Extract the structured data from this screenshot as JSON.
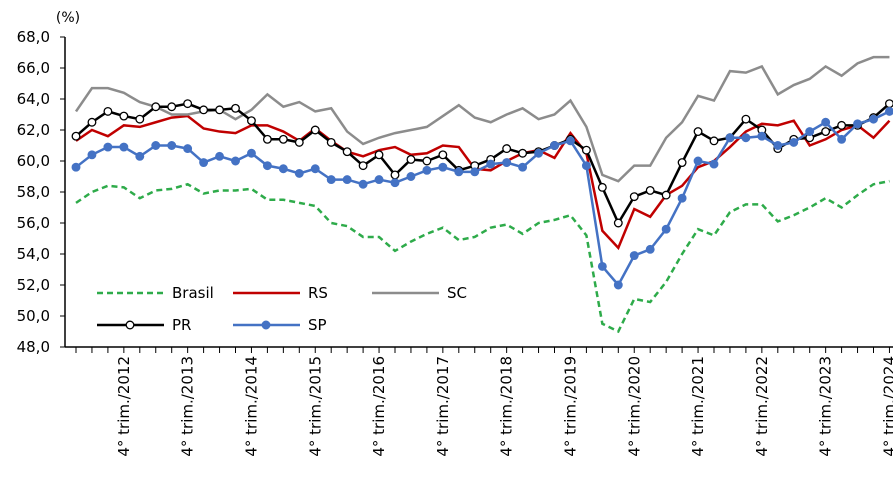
{
  "chart_data": {
    "type": "line",
    "y_unit_label": "(%)",
    "categories": [
      null,
      null,
      null,
      "4° trim./2012",
      null,
      null,
      null,
      "4° trim./2013",
      null,
      null,
      null,
      "4° trim./2014",
      null,
      null,
      null,
      "4° trim./2015",
      null,
      null,
      null,
      "4° trim./2016",
      null,
      null,
      null,
      "4° trim./2017",
      null,
      null,
      null,
      "4° trim./2018",
      null,
      null,
      null,
      "4° trim./2019",
      null,
      null,
      null,
      "4° trim./2020",
      null,
      null,
      null,
      "4° trim./2021",
      null,
      null,
      null,
      "4° trim./2022",
      null,
      null,
      null,
      "4° trim./2023",
      null,
      null,
      null,
      "4° trim./2024"
    ],
    "ylim": [
      48,
      68
    ],
    "yticks": [
      {
        "value": 48,
        "label": "48,0"
      },
      {
        "value": 50,
        "label": "50,0"
      },
      {
        "value": 52,
        "label": "52,0"
      },
      {
        "value": 54,
        "label": "54,0"
      },
      {
        "value": 56,
        "label": "56,0"
      },
      {
        "value": 58,
        "label": "58,0"
      },
      {
        "value": 60,
        "label": "60,0"
      },
      {
        "value": 62,
        "label": "62,0"
      },
      {
        "value": 64,
        "label": "64,0"
      },
      {
        "value": 66,
        "label": "66,0"
      },
      {
        "value": 68,
        "label": "68,0"
      }
    ],
    "grid": false,
    "series": [
      {
        "name": "Brasil",
        "color": "#2eab4a",
        "line_style": "dashed",
        "markers": false,
        "values": [
          57.3,
          58.0,
          58.4,
          58.3,
          57.6,
          58.1,
          58.2,
          58.5,
          57.9,
          58.1,
          58.1,
          58.2,
          57.5,
          57.5,
          57.3,
          57.1,
          56.0,
          55.8,
          55.1,
          55.1,
          54.2,
          54.8,
          55.3,
          55.7,
          54.9,
          55.1,
          55.7,
          55.9,
          55.3,
          56.0,
          56.2,
          56.5,
          55.2,
          49.5,
          49.0,
          51.1,
          50.9,
          52.2,
          54.0,
          55.6,
          55.2,
          56.7,
          57.2,
          57.2,
          56.1,
          56.5,
          57.0,
          57.6,
          57.0,
          57.8,
          58.5,
          58.7
        ]
      },
      {
        "name": "RS",
        "color": "#c00000",
        "line_style": "solid",
        "markers": false,
        "values": [
          61.3,
          62.0,
          61.6,
          62.3,
          62.2,
          62.5,
          62.8,
          62.9,
          62.1,
          61.9,
          61.8,
          62.3,
          62.3,
          61.9,
          61.3,
          62.1,
          61.3,
          60.6,
          60.3,
          60.7,
          60.9,
          60.4,
          60.5,
          61.0,
          60.9,
          59.5,
          59.4,
          60.0,
          60.5,
          60.7,
          60.2,
          61.8,
          60.5,
          55.5,
          54.4,
          56.9,
          56.4,
          57.8,
          58.4,
          59.6,
          60.0,
          60.9,
          61.9,
          62.4,
          62.3,
          62.6,
          61.0,
          61.4,
          62.0,
          62.3,
          61.5,
          62.6
        ]
      },
      {
        "name": "SC",
        "color": "#8c8c8c",
        "line_style": "solid",
        "markers": false,
        "values": [
          63.2,
          64.7,
          64.7,
          64.4,
          63.8,
          63.5,
          63.0,
          63.0,
          63.2,
          63.3,
          62.7,
          63.3,
          64.3,
          63.5,
          63.8,
          63.2,
          63.4,
          61.9,
          61.1,
          61.5,
          61.8,
          62.0,
          62.2,
          62.9,
          63.6,
          62.8,
          62.5,
          63.0,
          63.4,
          62.7,
          63.0,
          63.9,
          62.2,
          59.1,
          58.7,
          59.7,
          59.7,
          61.5,
          62.5,
          64.2,
          63.9,
          65.8,
          65.7,
          66.1,
          64.3,
          64.9,
          65.3,
          66.1,
          65.5,
          66.3,
          66.7,
          66.7
        ]
      },
      {
        "name": "PR",
        "color": "#000000",
        "line_style": "solid",
        "markers": true,
        "marker_fill": "#ffffff",
        "values": [
          61.6,
          62.5,
          63.2,
          62.9,
          62.7,
          63.5,
          63.5,
          63.7,
          63.3,
          63.3,
          63.4,
          62.6,
          61.4,
          61.4,
          61.2,
          62.0,
          61.2,
          60.6,
          59.7,
          60.4,
          59.1,
          60.1,
          60.0,
          60.4,
          59.4,
          59.7,
          60.1,
          60.8,
          60.5,
          60.6,
          61.0,
          61.4,
          60.7,
          58.3,
          56.0,
          57.7,
          58.1,
          57.8,
          59.9,
          61.9,
          61.3,
          61.5,
          62.7,
          62.0,
          60.8,
          61.4,
          61.5,
          61.9,
          62.3,
          62.3,
          62.8,
          63.7
        ]
      },
      {
        "name": "SP",
        "color": "#4472c4",
        "line_style": "solid",
        "markers": true,
        "marker_fill": "#4472c4",
        "values": [
          59.6,
          60.4,
          60.9,
          60.9,
          60.3,
          61.0,
          61.0,
          60.8,
          59.9,
          60.3,
          60.0,
          60.5,
          59.7,
          59.5,
          59.2,
          59.5,
          58.8,
          58.8,
          58.5,
          58.8,
          58.6,
          59.0,
          59.4,
          59.6,
          59.3,
          59.3,
          59.8,
          59.9,
          59.6,
          60.5,
          61.0,
          61.3,
          59.7,
          53.2,
          52.0,
          53.9,
          54.3,
          55.6,
          57.6,
          60.0,
          59.8,
          61.5,
          61.5,
          61.6,
          61.0,
          61.2,
          61.9,
          62.5,
          61.4,
          62.4,
          62.7,
          63.2
        ]
      }
    ]
  }
}
